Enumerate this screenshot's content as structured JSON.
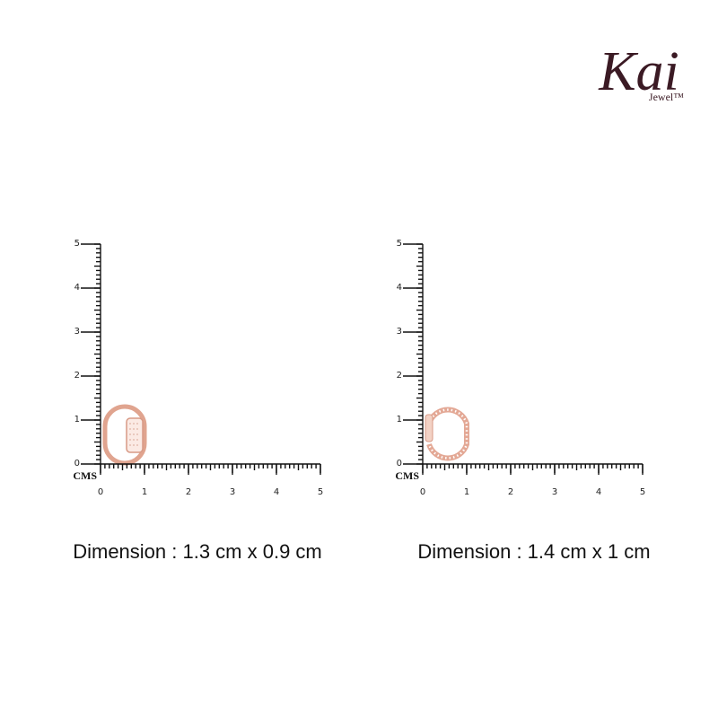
{
  "logo": {
    "name": "Kai",
    "sub": "Jewel™"
  },
  "rulers": [
    {
      "unit": "CMS",
      "x_ticks": [
        0,
        1,
        2,
        3,
        4,
        5
      ],
      "y_ticks": [
        0,
        1,
        2,
        3,
        4,
        5
      ],
      "caption": "Dimension : 1.3 cm x 0.9 cm"
    },
    {
      "unit": "CMS",
      "x_ticks": [
        0,
        1,
        2,
        3,
        4,
        5
      ],
      "y_ticks": [
        0,
        1,
        2,
        3,
        4,
        5
      ],
      "caption": "Dimension : 1.4 cm x 1 cm"
    }
  ]
}
